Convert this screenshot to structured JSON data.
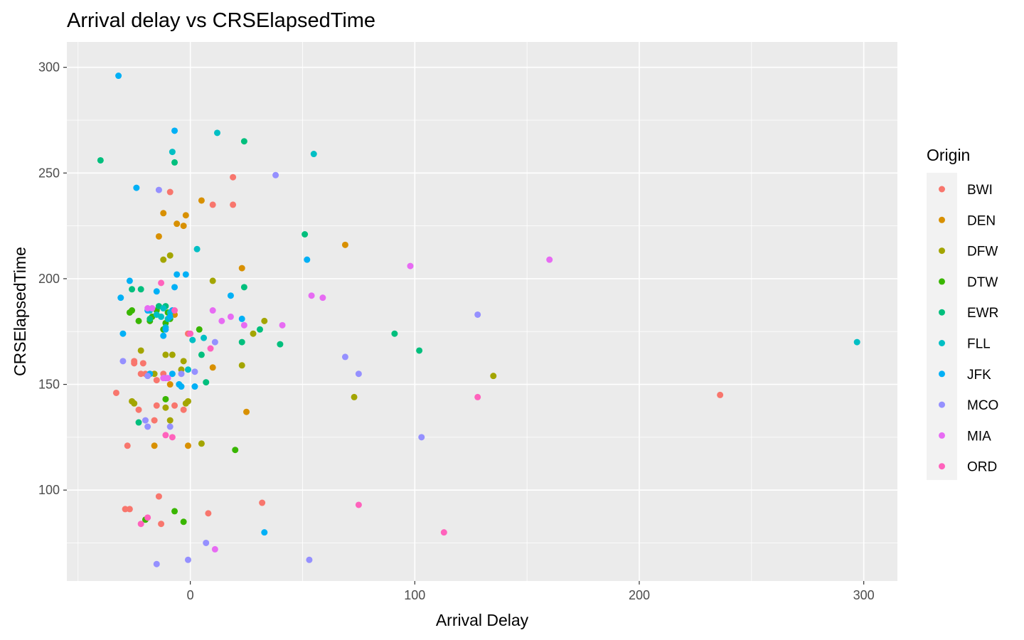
{
  "chart_data": {
    "type": "scatter",
    "title": "Arrival delay vs CRSElapsedTime",
    "xlabel": "Arrival Delay",
    "ylabel": "CRSElapsedTime",
    "xlim": [
      -55,
      315
    ],
    "ylim": [
      57,
      312
    ],
    "x_ticks": [
      0,
      100,
      200,
      300
    ],
    "y_ticks": [
      100,
      150,
      200,
      250,
      300
    ],
    "grid": true,
    "legend": {
      "title": "Origin",
      "position": "right"
    },
    "series": [
      {
        "name": "BWI",
        "color": "#F8766D",
        "points": [
          [
            -33,
            146
          ],
          [
            -28,
            121
          ],
          [
            -29,
            91
          ],
          [
            -27,
            91
          ],
          [
            -25,
            161
          ],
          [
            -25,
            160
          ],
          [
            -23,
            138
          ],
          [
            -22,
            155
          ],
          [
            -21,
            160
          ],
          [
            -20,
            155
          ],
          [
            -16,
            133
          ],
          [
            -15,
            140
          ],
          [
            -15,
            152
          ],
          [
            -14,
            97
          ],
          [
            -13,
            84
          ],
          [
            -12,
            155
          ],
          [
            -9,
            241
          ],
          [
            -7,
            140
          ],
          [
            -3,
            138
          ],
          [
            -1,
            174
          ],
          [
            8,
            89
          ],
          [
            10,
            235
          ],
          [
            19,
            248
          ],
          [
            19,
            235
          ],
          [
            32,
            94
          ],
          [
            236,
            145
          ]
        ]
      },
      {
        "name": "DEN",
        "color": "#D89000",
        "points": [
          [
            -18,
            155
          ],
          [
            -16,
            121
          ],
          [
            -14,
            220
          ],
          [
            -12,
            231
          ],
          [
            -9,
            150
          ],
          [
            -7,
            183
          ],
          [
            -6,
            226
          ],
          [
            -3,
            225
          ],
          [
            -2,
            230
          ],
          [
            -1,
            121
          ],
          [
            5,
            237
          ],
          [
            10,
            158
          ],
          [
            23,
            205
          ],
          [
            25,
            137
          ],
          [
            69,
            216
          ]
        ]
      },
      {
        "name": "DFW",
        "color": "#A3A500",
        "points": [
          [
            -26,
            142
          ],
          [
            -25,
            141
          ],
          [
            -22,
            166
          ],
          [
            -16,
            155
          ],
          [
            -12,
            209
          ],
          [
            -11,
            164
          ],
          [
            -11,
            139
          ],
          [
            -9,
            211
          ],
          [
            -9,
            133
          ],
          [
            -8,
            164
          ],
          [
            -4,
            157
          ],
          [
            -3,
            161
          ],
          [
            -2,
            141
          ],
          [
            -1,
            142
          ],
          [
            5,
            122
          ],
          [
            10,
            199
          ],
          [
            23,
            159
          ],
          [
            28,
            174
          ],
          [
            33,
            180
          ],
          [
            73,
            144
          ],
          [
            135,
            154
          ]
        ]
      },
      {
        "name": "DTW",
        "color": "#39B600",
        "points": [
          [
            -27,
            184
          ],
          [
            -26,
            185
          ],
          [
            -23,
            180
          ],
          [
            -20,
            86
          ],
          [
            -18,
            180
          ],
          [
            -17,
            182
          ],
          [
            -15,
            185
          ],
          [
            -12,
            176
          ],
          [
            -11,
            143
          ],
          [
            -11,
            179
          ],
          [
            -10,
            184
          ],
          [
            -9,
            181
          ],
          [
            -7,
            90
          ],
          [
            -3,
            85
          ],
          [
            4,
            176
          ],
          [
            20,
            119
          ]
        ]
      },
      {
        "name": "EWR",
        "color": "#00BF7D",
        "points": [
          [
            -40,
            256
          ],
          [
            -26,
            195
          ],
          [
            -23,
            132
          ],
          [
            -22,
            195
          ],
          [
            -18,
            181
          ],
          [
            -14,
            187
          ],
          [
            -11,
            187
          ],
          [
            -7,
            255
          ],
          [
            -5,
            150
          ],
          [
            5,
            164
          ],
          [
            7,
            151
          ],
          [
            23,
            170
          ],
          [
            24,
            265
          ],
          [
            24,
            196
          ],
          [
            31,
            176
          ],
          [
            40,
            169
          ],
          [
            51,
            221
          ],
          [
            91,
            174
          ],
          [
            102,
            166
          ]
        ]
      },
      {
        "name": "FLL",
        "color": "#00BFC4",
        "points": [
          [
            -18,
            185
          ],
          [
            -15,
            183
          ],
          [
            -13,
            182
          ],
          [
            -12,
            186
          ],
          [
            -11,
            177
          ],
          [
            -10,
            181
          ],
          [
            -9,
            184
          ],
          [
            -8,
            260
          ],
          [
            -1,
            157
          ],
          [
            1,
            171
          ],
          [
            3,
            214
          ],
          [
            6,
            172
          ],
          [
            12,
            269
          ],
          [
            55,
            259
          ],
          [
            297,
            170
          ]
        ]
      },
      {
        "name": "JFK",
        "color": "#00B0F6",
        "points": [
          [
            -32,
            296
          ],
          [
            -31,
            191
          ],
          [
            -30,
            174
          ],
          [
            -27,
            199
          ],
          [
            -24,
            243
          ],
          [
            -19,
            185
          ],
          [
            -18,
            155
          ],
          [
            -15,
            194
          ],
          [
            -12,
            173
          ],
          [
            -11,
            176
          ],
          [
            -9,
            182
          ],
          [
            -8,
            185
          ],
          [
            -8,
            155
          ],
          [
            -7,
            270
          ],
          [
            -7,
            196
          ],
          [
            -6,
            202
          ],
          [
            -5,
            150
          ],
          [
            -4,
            149
          ],
          [
            -2,
            202
          ],
          [
            2,
            149
          ],
          [
            18,
            192
          ],
          [
            23,
            181
          ],
          [
            33,
            80
          ],
          [
            52,
            209
          ]
        ]
      },
      {
        "name": "MCO",
        "color": "#9590FF",
        "points": [
          [
            -30,
            161
          ],
          [
            -20,
            133
          ],
          [
            -19,
            154
          ],
          [
            -19,
            130
          ],
          [
            -15,
            65
          ],
          [
            -14,
            242
          ],
          [
            -11,
            153
          ],
          [
            -9,
            130
          ],
          [
            -4,
            155
          ],
          [
            -1,
            67
          ],
          [
            2,
            156
          ],
          [
            7,
            75
          ],
          [
            11,
            170
          ],
          [
            38,
            249
          ],
          [
            53,
            67
          ],
          [
            69,
            163
          ],
          [
            75,
            155
          ],
          [
            103,
            125
          ],
          [
            128,
            183
          ]
        ]
      },
      {
        "name": "MIA",
        "color": "#E76BF3",
        "points": [
          [
            -19,
            186
          ],
          [
            -17,
            186
          ],
          [
            -12,
            153
          ],
          [
            -10,
            153
          ],
          [
            10,
            185
          ],
          [
            11,
            72
          ],
          [
            14,
            180
          ],
          [
            18,
            182
          ],
          [
            24,
            178
          ],
          [
            41,
            178
          ],
          [
            54,
            192
          ],
          [
            59,
            191
          ],
          [
            98,
            206
          ],
          [
            160,
            209
          ]
        ]
      },
      {
        "name": "ORD",
        "color": "#FF62BC",
        "points": [
          [
            -22,
            84
          ],
          [
            -19,
            87
          ],
          [
            -13,
            198
          ],
          [
            -11,
            126
          ],
          [
            -8,
            125
          ],
          [
            -7,
            185
          ],
          [
            0,
            174
          ],
          [
            9,
            167
          ],
          [
            75,
            93
          ],
          [
            113,
            80
          ],
          [
            128,
            144
          ]
        ]
      }
    ]
  }
}
